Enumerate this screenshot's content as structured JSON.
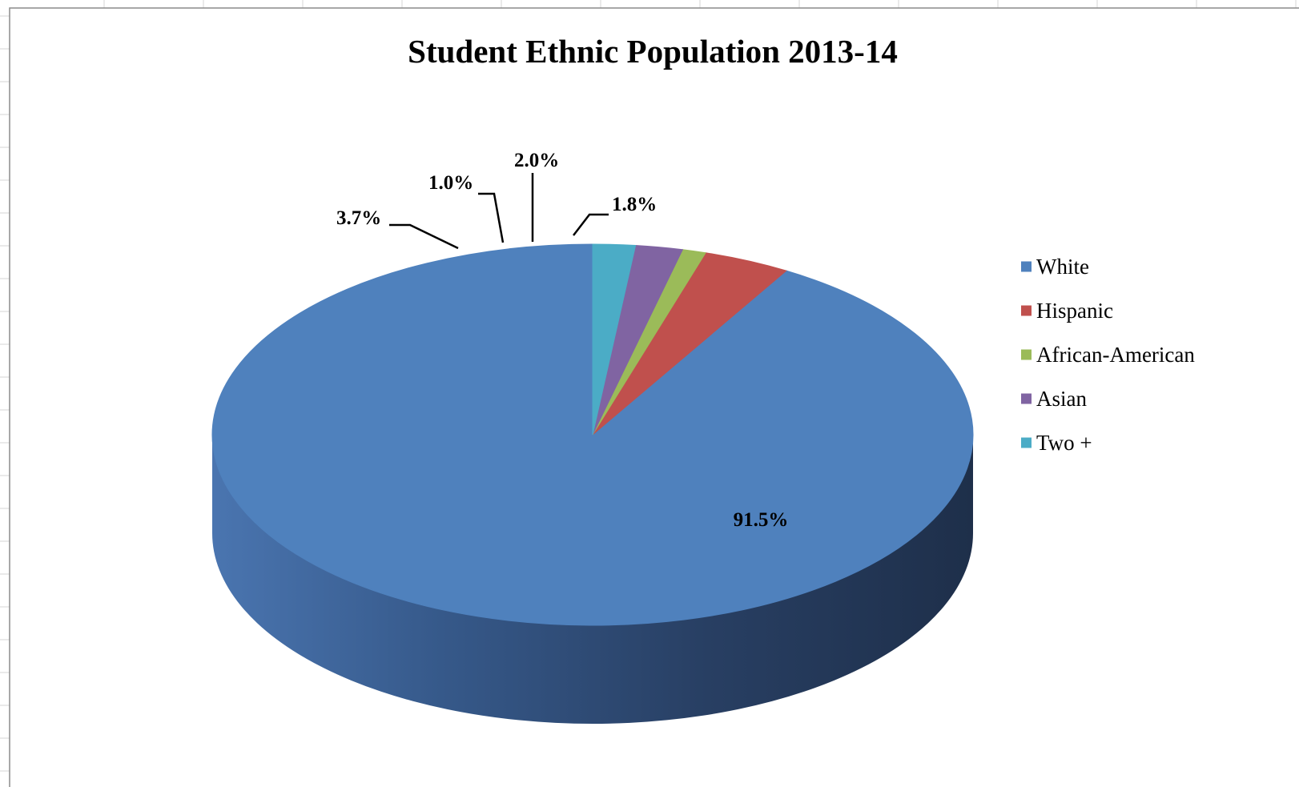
{
  "chart_data": {
    "type": "pie",
    "title": "Student Ethnic Population 2013-14",
    "categories": [
      "White",
      "Hispanic",
      "African-American",
      "Asian",
      "Two +"
    ],
    "values": [
      91.5,
      3.7,
      1.0,
      2.0,
      1.8
    ],
    "labels": [
      "91.5%",
      "3.7%",
      "1.0%",
      "2.0%",
      "1.8%"
    ],
    "colors": [
      "#4f81bd",
      "#c0504d",
      "#9bbb59",
      "#8064a2",
      "#4bacc6"
    ],
    "legend_position": "right",
    "style": "3d-pie"
  }
}
